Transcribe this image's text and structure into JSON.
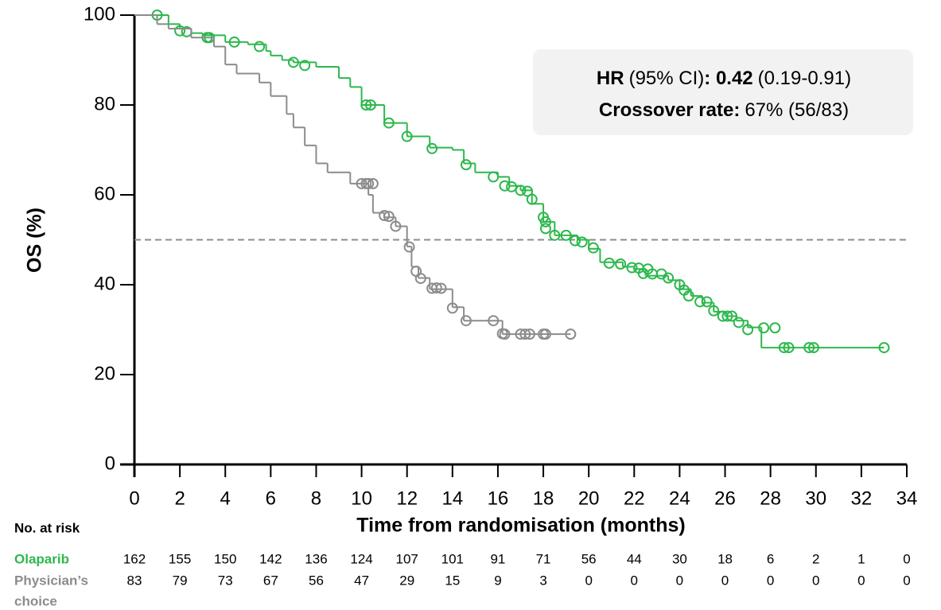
{
  "chart_data": {
    "type": "kaplan-meier",
    "x_label": "Time from randomisation (months)",
    "y_label": "OS (%)",
    "xlim": [
      0,
      34
    ],
    "ylim": [
      0,
      100
    ],
    "xticks": [
      0,
      2,
      4,
      6,
      8,
      10,
      12,
      14,
      16,
      18,
      20,
      22,
      24,
      26,
      28,
      30,
      32,
      34
    ],
    "yticks": [
      0,
      20,
      40,
      60,
      80,
      100
    ],
    "reference_line": {
      "y": 50,
      "color": "#8c8c8c"
    },
    "annotation": {
      "line1": [
        "HR",
        "(95% CI)",
        ": 0.42",
        "(0.19-0.91)"
      ],
      "line2": [
        "Crossover rate:",
        "67% (56/83)"
      ]
    },
    "series": [
      {
        "name": "Olaparib",
        "color": "#2db84d",
        "x": [
          0,
          1.5,
          2,
          2.5,
          3,
          4,
          5,
          5.8,
          6,
          6.5,
          7,
          8,
          9,
          9.5,
          10,
          11,
          12,
          13,
          14,
          14.5,
          15,
          16,
          16.5,
          17,
          17.5,
          18,
          18.5,
          19.5,
          20,
          20.5,
          21.5,
          22,
          22.5,
          23,
          23.5,
          24,
          24.5,
          25,
          25.5,
          26,
          26.5,
          27,
          27.6,
          33
        ],
        "values": [
          100,
          98,
          97,
          96,
          95.5,
          94,
          93.5,
          92,
          91,
          90,
          89.5,
          88.5,
          86,
          84,
          80,
          76,
          73,
          70.5,
          70,
          67,
          65,
          64,
          62,
          61,
          58,
          54,
          51,
          50,
          48,
          45,
          44,
          43.5,
          42,
          42,
          41,
          39,
          37.5,
          36,
          34,
          33,
          32,
          30.5,
          26,
          26
        ],
        "censored_x": [
          1,
          2,
          2.3,
          3.2,
          3.3,
          4.4,
          5.5,
          7,
          7.5,
          10.2,
          10.4,
          11.2,
          12,
          13.1,
          14.6,
          15.8,
          16.3,
          16.6,
          17,
          17.3,
          17.5,
          18,
          18.1,
          18.1,
          18.5,
          19,
          19.4,
          19.7,
          20.2,
          20.9,
          21.4,
          21.9,
          22.2,
          22.4,
          22.6,
          22.8,
          23.2,
          23.5,
          24,
          24.2,
          24.4,
          24.9,
          25.2,
          25.5,
          25.9,
          26.1,
          26.3,
          26.6,
          27,
          27.7,
          28.2,
          28.6,
          28.8,
          29.7,
          29.9,
          33
        ],
        "censored_values": [
          100,
          96.5,
          96.3,
          95,
          95,
          94,
          93,
          89.5,
          88.8,
          80,
          80,
          76,
          73,
          70.3,
          66.7,
          64,
          62,
          61.8,
          61,
          60.8,
          59,
          55,
          54,
          52.5,
          51,
          51,
          49.8,
          49.5,
          48.2,
          44.8,
          44.6,
          43.8,
          43.7,
          42.5,
          43.5,
          42.4,
          42.4,
          41.5,
          40,
          38.8,
          37.5,
          36.2,
          36.2,
          34.2,
          33,
          33,
          33,
          31.6,
          30,
          30.4,
          30.4,
          26,
          26,
          26,
          26,
          26
        ],
        "at_risk": [
          162,
          155,
          150,
          142,
          136,
          124,
          107,
          101,
          91,
          71,
          56,
          44,
          30,
          18,
          6,
          2,
          1,
          0
        ]
      },
      {
        "name": [
          "Physician’s",
          "choice"
        ],
        "color": "#8c8c8c",
        "x": [
          0,
          1,
          1.5,
          2.5,
          3.5,
          4,
          4.5,
          5.5,
          6,
          6.7,
          7,
          7.5,
          8,
          8.5,
          9.5,
          10.3,
          10.5,
          11,
          11.5,
          12,
          12.2,
          12.5,
          13,
          14,
          14.5,
          16.2,
          19.2
        ],
        "values": [
          100,
          98,
          97,
          95,
          93,
          89,
          87,
          85,
          82,
          78,
          75,
          71,
          67,
          65,
          62.5,
          60,
          56,
          55,
          53,
          48.5,
          44,
          41.5,
          39,
          35,
          32,
          29,
          29
        ],
        "censored_x": [
          10,
          10.2,
          10.3,
          10.5,
          11,
          11.2,
          11.5,
          12.1,
          12.4,
          12.6,
          13.1,
          13.3,
          13.5,
          14,
          14.6,
          15.8,
          16.2,
          16.3,
          17,
          17.2,
          17.4,
          18,
          18.1,
          19.2
        ],
        "censored_values": [
          62.5,
          62.5,
          62.5,
          62.5,
          55.4,
          55.2,
          53,
          48.4,
          43,
          41.4,
          39.2,
          39.3,
          39.2,
          34.8,
          32,
          32,
          29.1,
          29,
          29,
          29,
          29,
          29,
          29,
          29
        ],
        "at_risk": [
          83,
          79,
          73,
          67,
          56,
          47,
          29,
          15,
          9,
          3,
          0,
          0,
          0,
          0,
          0,
          0,
          0,
          0
        ]
      }
    ],
    "risk_table_title": "No. at risk"
  }
}
